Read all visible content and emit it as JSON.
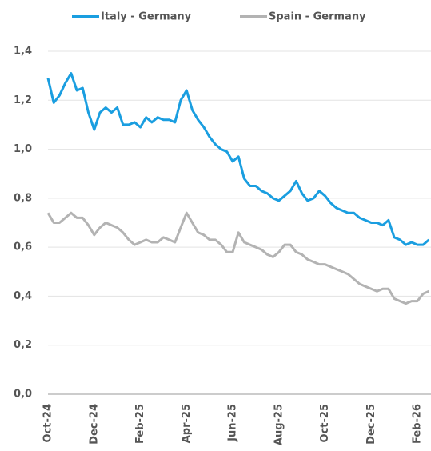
{
  "chart_data": {
    "type": "line",
    "categories": [
      "Oct-24",
      null,
      null,
      null,
      null,
      null,
      null,
      null,
      "Dec-24",
      null,
      null,
      null,
      null,
      null,
      null,
      null,
      "Feb-25",
      null,
      null,
      null,
      null,
      null,
      null,
      null,
      "Apr-25",
      null,
      null,
      null,
      null,
      null,
      null,
      null,
      "Jun-25",
      null,
      null,
      null,
      null,
      null,
      null,
      null,
      "Aug-25",
      null,
      null,
      null,
      null,
      null,
      null,
      null,
      "Oct-25",
      null,
      null,
      null,
      null,
      null,
      null,
      null,
      "Dec-25",
      null,
      null,
      null,
      null,
      null,
      null,
      null,
      "Feb-26",
      null,
      null
    ],
    "series": [
      {
        "name": "Italy - Germany",
        "color": "#1a9ee0",
        "values": [
          1.29,
          1.19,
          1.22,
          1.27,
          1.31,
          1.24,
          1.25,
          1.15,
          1.08,
          1.15,
          1.17,
          1.15,
          1.17,
          1.1,
          1.1,
          1.11,
          1.09,
          1.13,
          1.11,
          1.13,
          1.12,
          1.12,
          1.11,
          1.2,
          1.24,
          1.16,
          1.12,
          1.09,
          1.05,
          1.02,
          1.0,
          0.99,
          0.95,
          0.97,
          0.88,
          0.85,
          0.85,
          0.83,
          0.82,
          0.8,
          0.79,
          0.81,
          0.83,
          0.87,
          0.82,
          0.79,
          0.8,
          0.83,
          0.81,
          0.78,
          0.76,
          0.75,
          0.74,
          0.74,
          0.72,
          0.71,
          0.7,
          0.7,
          0.69,
          0.71,
          0.64,
          0.63,
          0.61,
          0.62,
          0.61,
          0.61,
          0.63
        ]
      },
      {
        "name": "Spain - Germany",
        "color": "#b3b3b3",
        "values": [
          0.74,
          0.7,
          0.7,
          0.72,
          0.74,
          0.72,
          0.72,
          0.69,
          0.65,
          0.68,
          0.7,
          0.69,
          0.68,
          0.66,
          0.63,
          0.61,
          0.62,
          0.63,
          0.62,
          0.62,
          0.64,
          0.63,
          0.62,
          0.68,
          0.74,
          0.7,
          0.66,
          0.65,
          0.63,
          0.63,
          0.61,
          0.58,
          0.58,
          0.66,
          0.62,
          0.61,
          0.6,
          0.59,
          0.57,
          0.56,
          0.58,
          0.61,
          0.61,
          0.58,
          0.57,
          0.55,
          0.54,
          0.53,
          0.53,
          0.52,
          0.51,
          0.5,
          0.49,
          0.47,
          0.45,
          0.44,
          0.43,
          0.42,
          0.43,
          0.43,
          0.39,
          0.38,
          0.37,
          0.38,
          0.38,
          0.41,
          0.42
        ]
      }
    ],
    "ylim": [
      0,
      1.4
    ],
    "yticks": [
      {
        "value": 0,
        "label": "0,0"
      },
      {
        "value": 0.2,
        "label": "0,2"
      },
      {
        "value": 0.4,
        "label": "0,4"
      },
      {
        "value": 0.6,
        "label": "0,6"
      },
      {
        "value": 0.8,
        "label": "0,8"
      },
      {
        "value": 1.0,
        "label": "1,0"
      },
      {
        "value": 1.2,
        "label": "1,2"
      },
      {
        "value": 1.4,
        "label": "1,4"
      }
    ],
    "grid": true,
    "legend": "top"
  }
}
